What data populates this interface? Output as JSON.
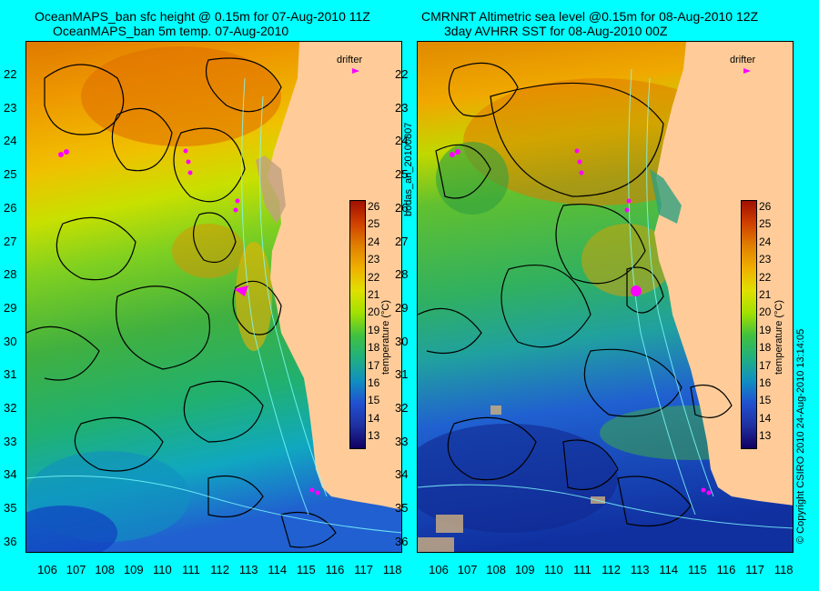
{
  "left_panel": {
    "title_line1": "OceanMAPS_ban sfc height @ 0.15m for 07-Aug-2010 11Z",
    "title_line2": "OceanMAPS_ban 5m temp. 07-Aug-2010"
  },
  "right_panel": {
    "title_line1": "CMRNRT Altimetric sea level  @0.15m  for 08-Aug-2010 12Z",
    "title_line2": "3day AVHRR SST for 08-Aug-2010 00Z"
  },
  "drifter_label": "drifter",
  "colorbar_title": "temperature (°C)",
  "side_label_left": "bodas_an_20100807",
  "side_label_right": "© Copyright CSIRO 2010   24-Aug-2010 13:14:05",
  "colorbar_ticks": [
    "26",
    "25",
    "24",
    "23",
    "22",
    "21",
    "20",
    "19",
    "18",
    "17",
    "16",
    "15",
    "14",
    "13"
  ],
  "lat_ticks": [
    "22",
    "23",
    "24",
    "25",
    "26",
    "27",
    "28",
    "29",
    "30",
    "31",
    "32",
    "33",
    "34",
    "35",
    "36"
  ],
  "lon_ticks": [
    "106",
    "107",
    "108",
    "109",
    "110",
    "111",
    "112",
    "113",
    "114",
    "115",
    "116",
    "117",
    "118"
  ],
  "colors": {
    "background": "#00ffff",
    "land": "#ffcc99",
    "drifter": "#ff00ff",
    "warm": "#e08000",
    "cool": "#2050d0"
  }
}
